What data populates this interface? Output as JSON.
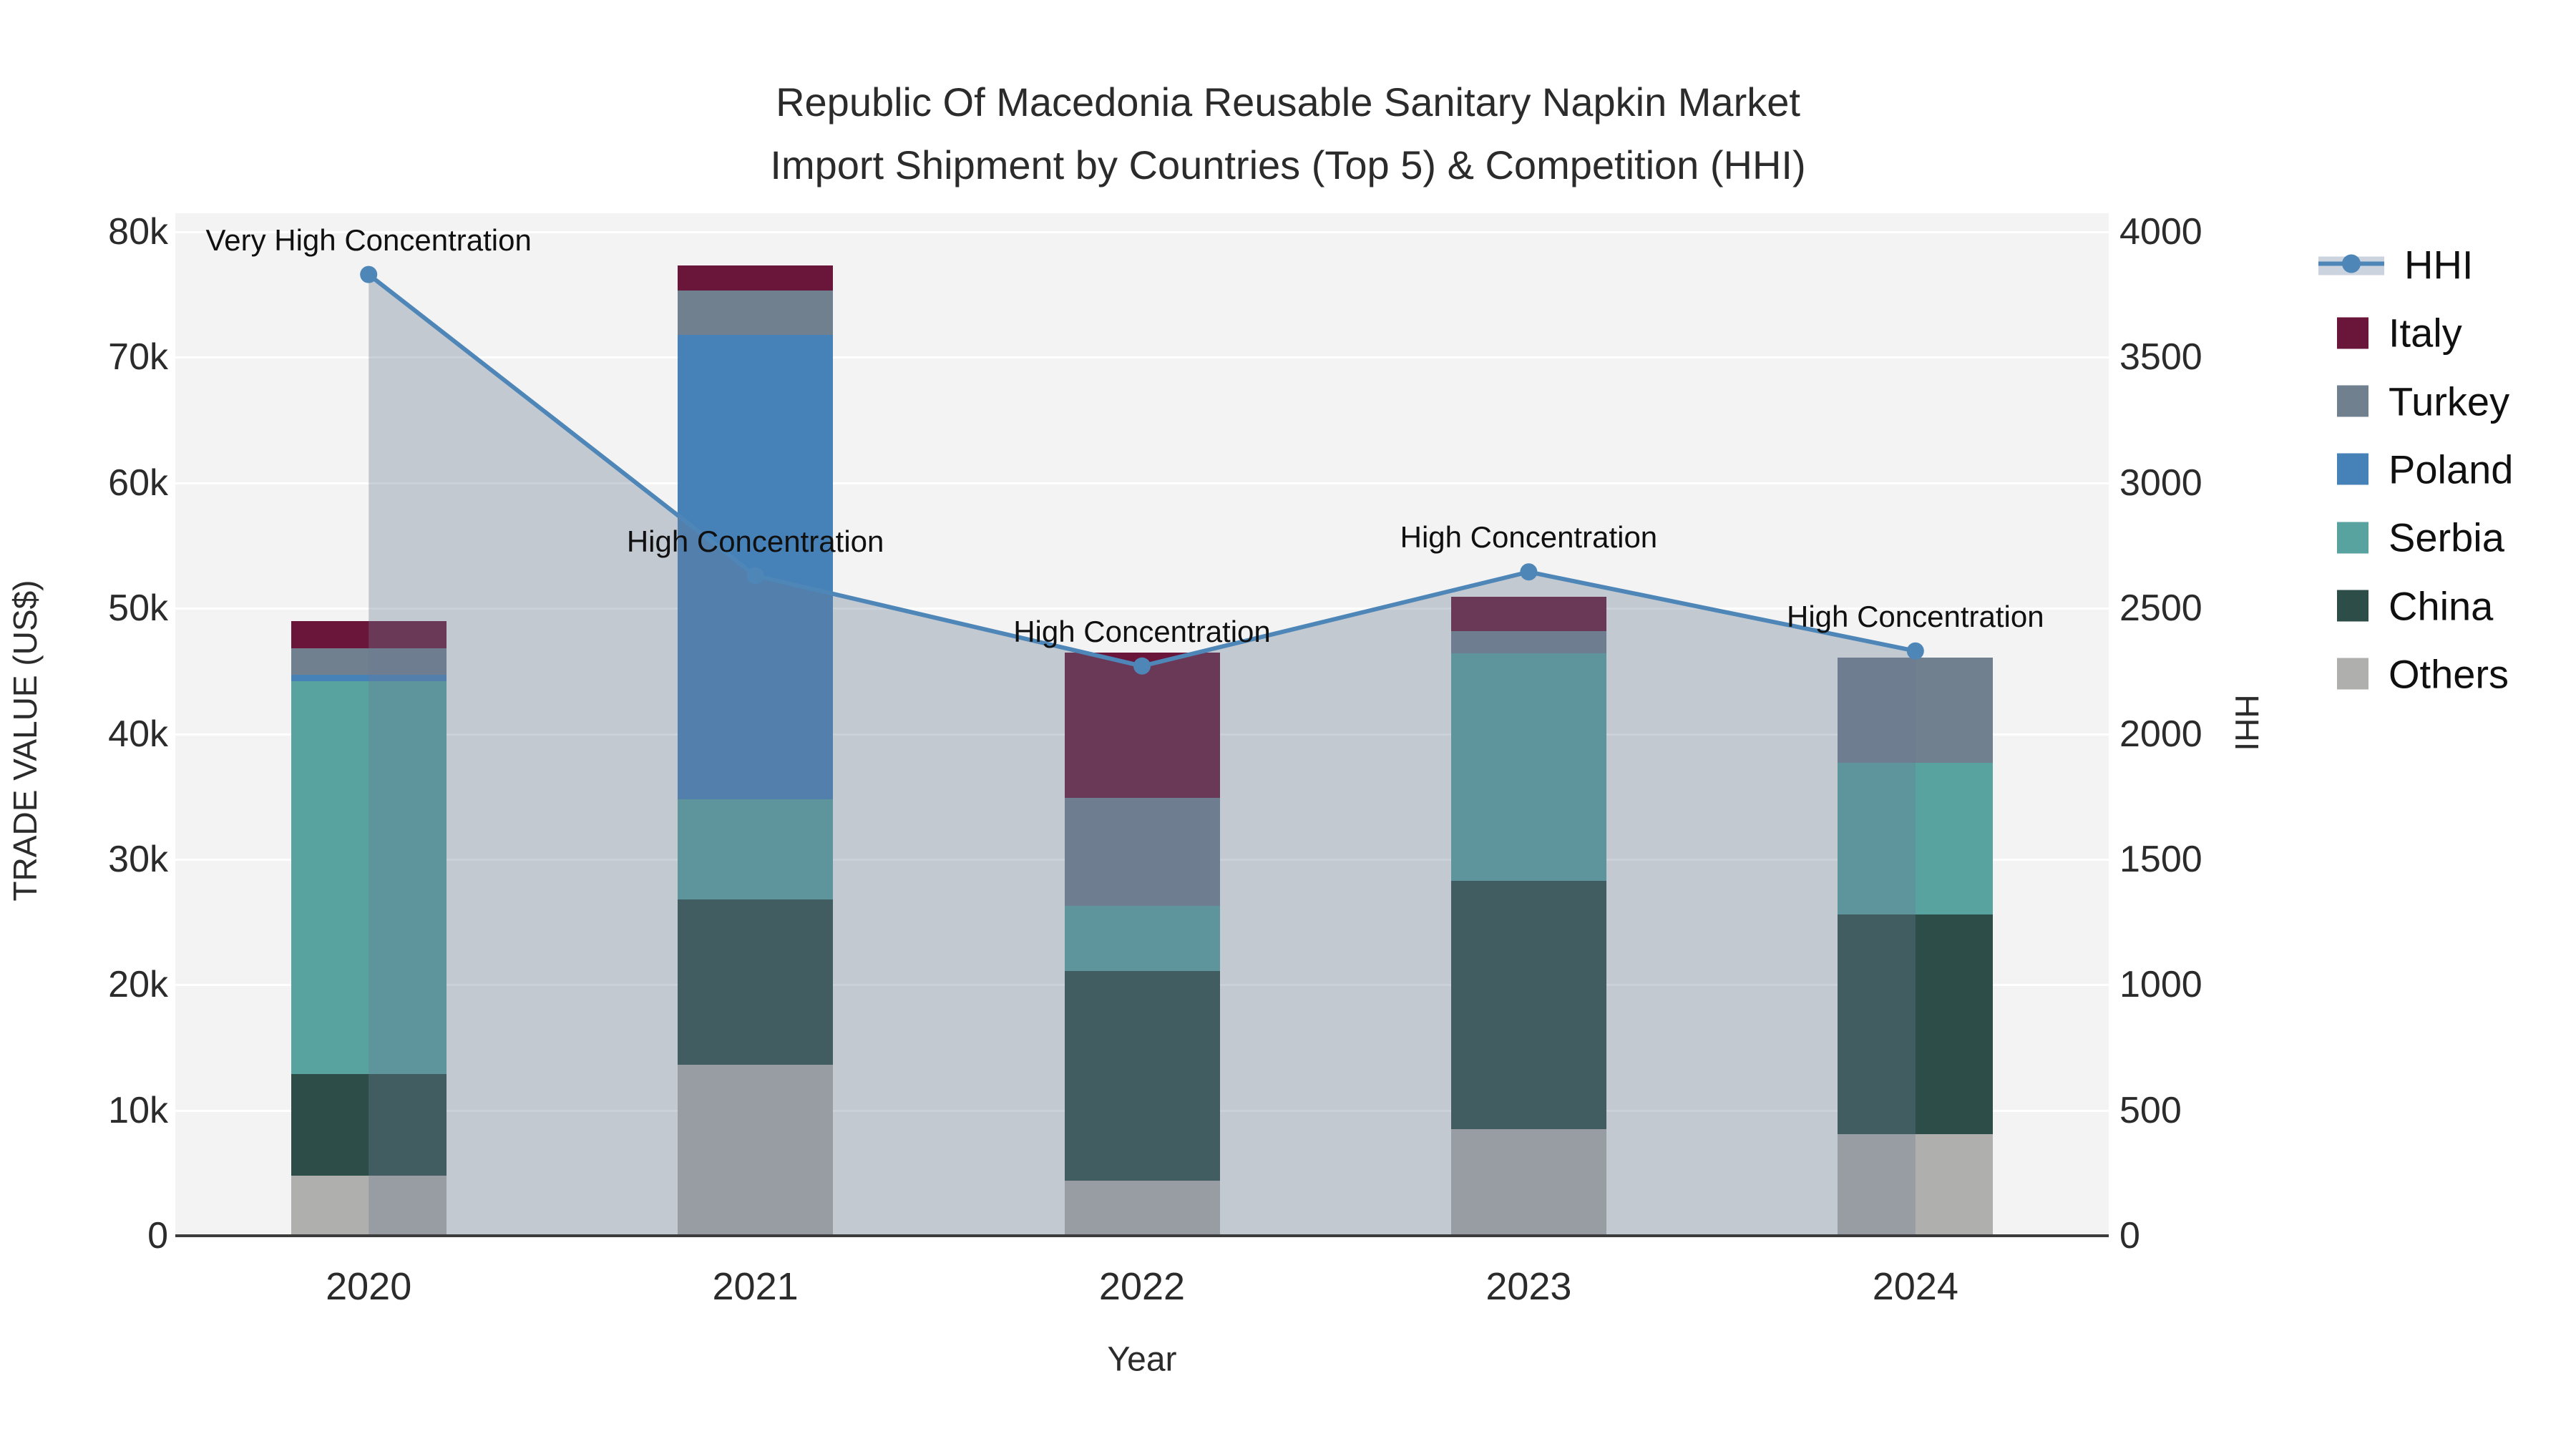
{
  "title": {
    "line1": "Republic Of Macedonia Reusable Sanitary Napkin Market",
    "line2": "Import Shipment by Countries (Top 5) & Competition (HHI)"
  },
  "axes": {
    "x": {
      "title": "Year",
      "ticks": [
        "2020",
        "2021",
        "2022",
        "2023",
        "2024"
      ]
    },
    "y_left": {
      "title": "TRADE VALUE (US$)",
      "ticks": [
        "0",
        "10k",
        "20k",
        "30k",
        "40k",
        "50k",
        "60k",
        "70k",
        "80k"
      ],
      "max": 80000
    },
    "y_right": {
      "title": "HHI",
      "ticks": [
        "0",
        "500",
        "1000",
        "1500",
        "2000",
        "2500",
        "3000",
        "3500",
        "4000"
      ],
      "max": 4000
    }
  },
  "legend": {
    "items": [
      {
        "label": "HHI",
        "type": "line"
      },
      {
        "label": "Italy",
        "type": "swatch",
        "color": "#6A163A"
      },
      {
        "label": "Turkey",
        "type": "swatch",
        "color": "#71808F"
      },
      {
        "label": "Poland",
        "type": "swatch",
        "color": "#4681B8"
      },
      {
        "label": "Serbia",
        "type": "swatch",
        "color": "#58A2A0"
      },
      {
        "label": "China",
        "type": "swatch",
        "color": "#2D4D48"
      },
      {
        "label": "Others",
        "type": "swatch",
        "color": "#AFB0AD"
      }
    ]
  },
  "chart_data": {
    "type": "bar",
    "subtype": "stacked bars + line on secondary axis with area fill",
    "title": "Republic Of Macedonia Reusable Sanitary Napkin Market Import Shipment by Countries (Top 5) & Competition (HHI)",
    "xlabel": "Year",
    "ylabel_left": "TRADE VALUE (US$)",
    "ylabel_right": "HHI",
    "ylim_left": [
      0,
      80000
    ],
    "ylim_right": [
      0,
      4000
    ],
    "grid": true,
    "legend_position": "outside-top-right",
    "categories": [
      "2020",
      "2021",
      "2022",
      "2023",
      "2024"
    ],
    "stack_order_bottom_to_top": [
      "Others",
      "China",
      "Serbia",
      "Poland",
      "Turkey",
      "Italy"
    ],
    "series": [
      {
        "name": "Others",
        "color": "#AFB0AD",
        "values": [
          4800,
          13600,
          4400,
          8500,
          8100
        ]
      },
      {
        "name": "China",
        "color": "#2D4D48",
        "values": [
          8100,
          13200,
          16700,
          19800,
          17500
        ]
      },
      {
        "name": "Serbia",
        "color": "#58A2A0",
        "values": [
          31300,
          8000,
          5200,
          18100,
          12100
        ]
      },
      {
        "name": "Poland",
        "color": "#4681B8",
        "values": [
          500,
          37000,
          0,
          0,
          0
        ]
      },
      {
        "name": "Turkey",
        "color": "#71808F",
        "values": [
          2100,
          3500,
          8600,
          1800,
          8400
        ]
      },
      {
        "name": "Italy",
        "color": "#6A163A",
        "values": [
          2200,
          2000,
          11600,
          2700,
          0
        ]
      }
    ],
    "bar_totals": [
      49000,
      77300,
      46500,
      50900,
      46100
    ],
    "line_series": {
      "name": "HHI",
      "color": "#4E86B8",
      "area_fill": "rgba(106,123,145,0.35)",
      "axis": "right",
      "values": [
        3830,
        2630,
        2270,
        2645,
        2330
      ]
    },
    "annotations": [
      {
        "x": "2020",
        "text": "Very High Concentration"
      },
      {
        "x": "2021",
        "text": "High Concentration"
      },
      {
        "x": "2022",
        "text": "High Concentration"
      },
      {
        "x": "2023",
        "text": "High Concentration"
      },
      {
        "x": "2024",
        "text": "High Concentration"
      }
    ],
    "colors": {
      "plot_background": "#F3F3F3",
      "gridline": "#FFFFFF",
      "axis_line": "#3C3C3C",
      "text": "#2B2B2B",
      "hhi_line": "#4E86B8",
      "area_fill": "rgba(106,123,145,0.35)"
    }
  }
}
